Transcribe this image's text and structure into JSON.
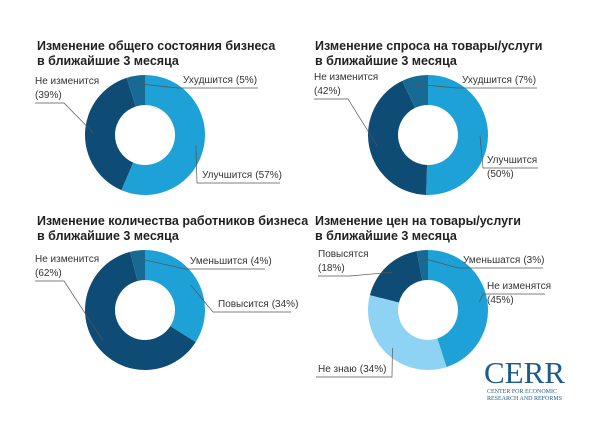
{
  "chart_data": [
    {
      "type": "pie",
      "title": [
        "Изменение общего состояния бизнеса",
        "в ближайшие 3 месяца"
      ],
      "categories": [
        "Улучшится",
        "Не изменится",
        "Ухудшится"
      ],
      "values": [
        57,
        39,
        5
      ],
      "value_labels": [
        "(57%)",
        "(39%)",
        "(5%)"
      ],
      "colors": [
        "#1ea1d6",
        "#0f4c75",
        "#176a93"
      ]
    },
    {
      "type": "pie",
      "title": [
        "Изменение спроса на товары/услуги",
        "в ближайшие 3 месяца"
      ],
      "categories": [
        "Улучшится",
        "Не изменится",
        "Ухудшится"
      ],
      "values": [
        50,
        42,
        7
      ],
      "value_labels": [
        "(50%)",
        "(42%)",
        "(7%)"
      ],
      "colors": [
        "#1ea1d6",
        "#0f4c75",
        "#176a93"
      ]
    },
    {
      "type": "pie",
      "title": [
        "Изменение количества работников бизнеса",
        "в ближайшие 3 месяца"
      ],
      "categories": [
        "Повысится",
        "Не изменится",
        "Уменьшится"
      ],
      "values": [
        34,
        62,
        4
      ],
      "value_labels": [
        "(34%)",
        "(62%)",
        "(4%)"
      ],
      "colors": [
        "#1ea1d6",
        "#0f4c75",
        "#176a93"
      ]
    },
    {
      "type": "pie",
      "title": [
        "Изменение цен на товары/услуги",
        "в ближайшие 3 месяца"
      ],
      "categories": [
        "Не изменятся",
        "Не знаю",
        "Повысятся",
        "Уменьшатся"
      ],
      "values": [
        45,
        34,
        18,
        3
      ],
      "value_labels": [
        "(45%)",
        "(34%)",
        "(18%)",
        "(3%)"
      ],
      "colors": [
        "#1ea1d6",
        "#8fd3f4",
        "#0f4c75",
        "#176a93"
      ]
    }
  ],
  "logo": {
    "name": "CERR",
    "subtitle": [
      "CENTER FOR ECONOMIC",
      "RESEARCH AND REFORMS"
    ]
  }
}
